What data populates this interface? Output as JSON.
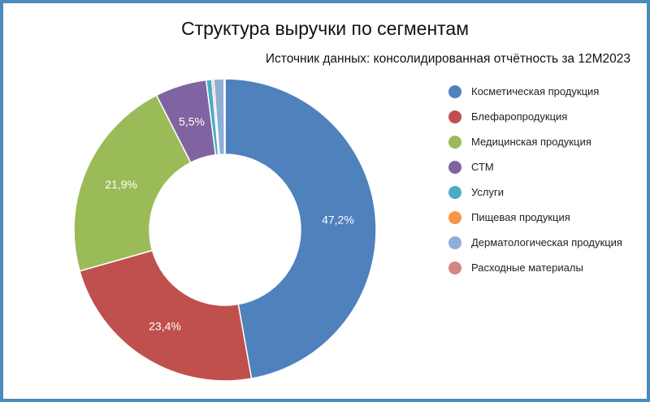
{
  "chart_data": {
    "type": "pie",
    "subtype": "donut",
    "title": "Структура выручки по сегментам",
    "subtitle": "Источник данных: консолидированная отчётность за 12М2023",
    "categories": [
      "Косметическая продукция",
      "Блефаропродукция",
      "Медицинская продукция",
      "СТМ",
      "Услуги",
      "Пищевая продукция",
      "Дерматологическая продукция",
      "Расходные материалы"
    ],
    "values": [
      47.2,
      23.4,
      21.9,
      5.5,
      0.6,
      0.2,
      1.1,
      0.1
    ],
    "labels": [
      "47,2%",
      "23,4%",
      "21,9%",
      "5,5%",
      "",
      "",
      "",
      ""
    ],
    "colors": [
      "#4f81bd",
      "#c0504d",
      "#9bbb59",
      "#8064a2",
      "#4bacc6",
      "#f79646",
      "#8eaed8",
      "#d48682"
    ],
    "legend_position": "right"
  },
  "header": {
    "title": "Структура выручки по сегментам",
    "subtitle": "Источник данных: консолидированная отчётность за 12М2023"
  },
  "legend": {
    "items": [
      {
        "label": "Косметическая продукция",
        "color": "#4f81bd"
      },
      {
        "label": "Блефаропродукция",
        "color": "#c0504d"
      },
      {
        "label": "Медицинская продукция",
        "color": "#9bbb59"
      },
      {
        "label": "СТМ",
        "color": "#8064a2"
      },
      {
        "label": "Услуги",
        "color": "#4bacc6"
      },
      {
        "label": "Пищевая продукция",
        "color": "#f79646"
      },
      {
        "label": "Дерматологическая продукция",
        "color": "#8eaed8"
      },
      {
        "label": "Расходные материалы",
        "color": "#d48682"
      }
    ]
  }
}
